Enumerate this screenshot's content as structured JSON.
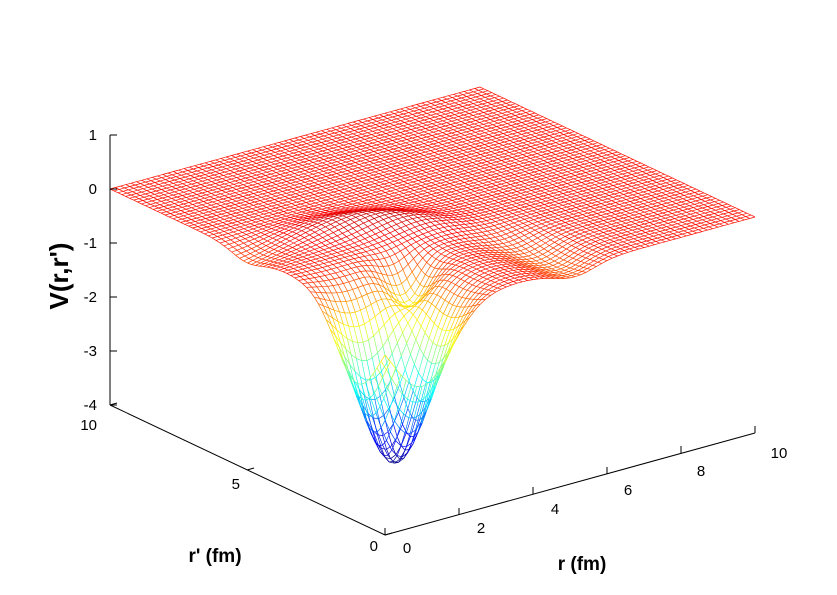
{
  "chart_data": {
    "type": "surface-mesh",
    "xlabel": "r (fm)",
    "ylabel": "r' (fm)",
    "zlabel": "V(r,r')",
    "xlim": [
      0,
      10
    ],
    "ylim": [
      0,
      10
    ],
    "zlim": [
      -4,
      1
    ],
    "x_ticks": [
      "0",
      "2",
      "4",
      "6",
      "8",
      "10"
    ],
    "y_ticks": [
      "0",
      "5",
      "10"
    ],
    "z_ticks": [
      "1",
      "0",
      "-1",
      "-2",
      "-3",
      "-4"
    ],
    "colormap": "jet",
    "z_min_value": -3.1,
    "z_min_at": [
      1.0,
      1.0
    ],
    "ridge_peak_value": -1.3,
    "ridge_peak_at": [
      2.5,
      2.5
    ],
    "plateau_value": 0,
    "grid": false
  }
}
